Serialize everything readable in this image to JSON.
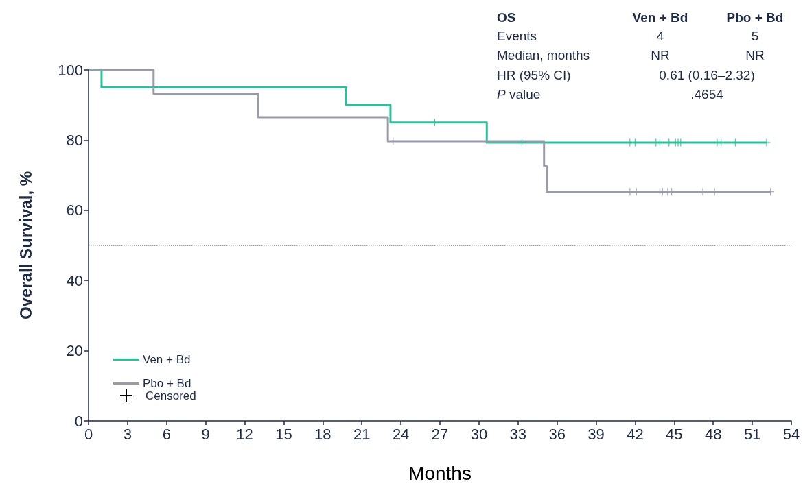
{
  "chart_data": {
    "type": "step",
    "xlabel": "Months",
    "ylabel": "Overall Survival, %",
    "xlim": [
      0,
      54
    ],
    "xticks": [
      0,
      3,
      6,
      9,
      12,
      15,
      18,
      21,
      24,
      27,
      30,
      33,
      36,
      39,
      42,
      45,
      48,
      51,
      54
    ],
    "ylim": [
      0,
      100
    ],
    "yticks": [
      0,
      20,
      40,
      60,
      80,
      100
    ],
    "grid": false,
    "legend": "bottom left",
    "marker": "none",
    "line_style": "solid",
    "series": [
      {
        "name": "Ven + Bd",
        "color": "#2bbf9b",
        "x": [
          0,
          1,
          19.8,
          23.2,
          30.6,
          52.1
        ],
        "values": [
          100,
          95,
          90,
          85,
          79.3,
          79.3
        ]
      },
      {
        "name": "Pbo + Bd",
        "color": "#9a9ba8",
        "x": [
          0,
          5,
          13,
          23,
          35,
          35.2,
          52.4
        ],
        "values": [
          100,
          93.2,
          86.5,
          79.7,
          72.6,
          65.3,
          65.3
        ]
      },
      {
        "type": "scatter",
        "marker": "cross",
        "color": "#2bbf9b",
        "x": [
          26.6,
          33.3,
          41.6,
          42.0,
          43.6,
          43.9,
          44.6,
          45.1,
          45.3,
          45.5,
          48.3,
          48.6,
          49.7,
          52.1
        ],
        "values": [
          85,
          79.3,
          79.3,
          79.3,
          79.3,
          79.3,
          79.3,
          79.3,
          79.3,
          79.3,
          79.3,
          79.3,
          79.3,
          79.3
        ]
      },
      {
        "type": "scatter",
        "marker": "cross",
        "color": "#9a9ba8",
        "x": [
          23.4,
          41.6,
          42.1,
          43.9,
          44.1,
          44.5,
          44.8,
          47.2,
          48.1,
          52.4
        ],
        "values": [
          79.7,
          65.3,
          65.3,
          65.3,
          65.3,
          65.3,
          65.3,
          65.3,
          65.3,
          65.3
        ]
      }
    ],
    "ref_lines": [
      {
        "axis": "y",
        "value": 50,
        "color": "#8a8a8a",
        "line_style": "dotted"
      }
    ],
    "annotations": [
      "OS",
      "Ven + Bd",
      "Pbo + Bd",
      "Events",
      "4",
      "5",
      "Median, months",
      "NR",
      "NR",
      "HR (95% CI)",
      "0.61 (0.16–2.32)",
      "P value",
      ".4654",
      "Censored"
    ]
  }
}
